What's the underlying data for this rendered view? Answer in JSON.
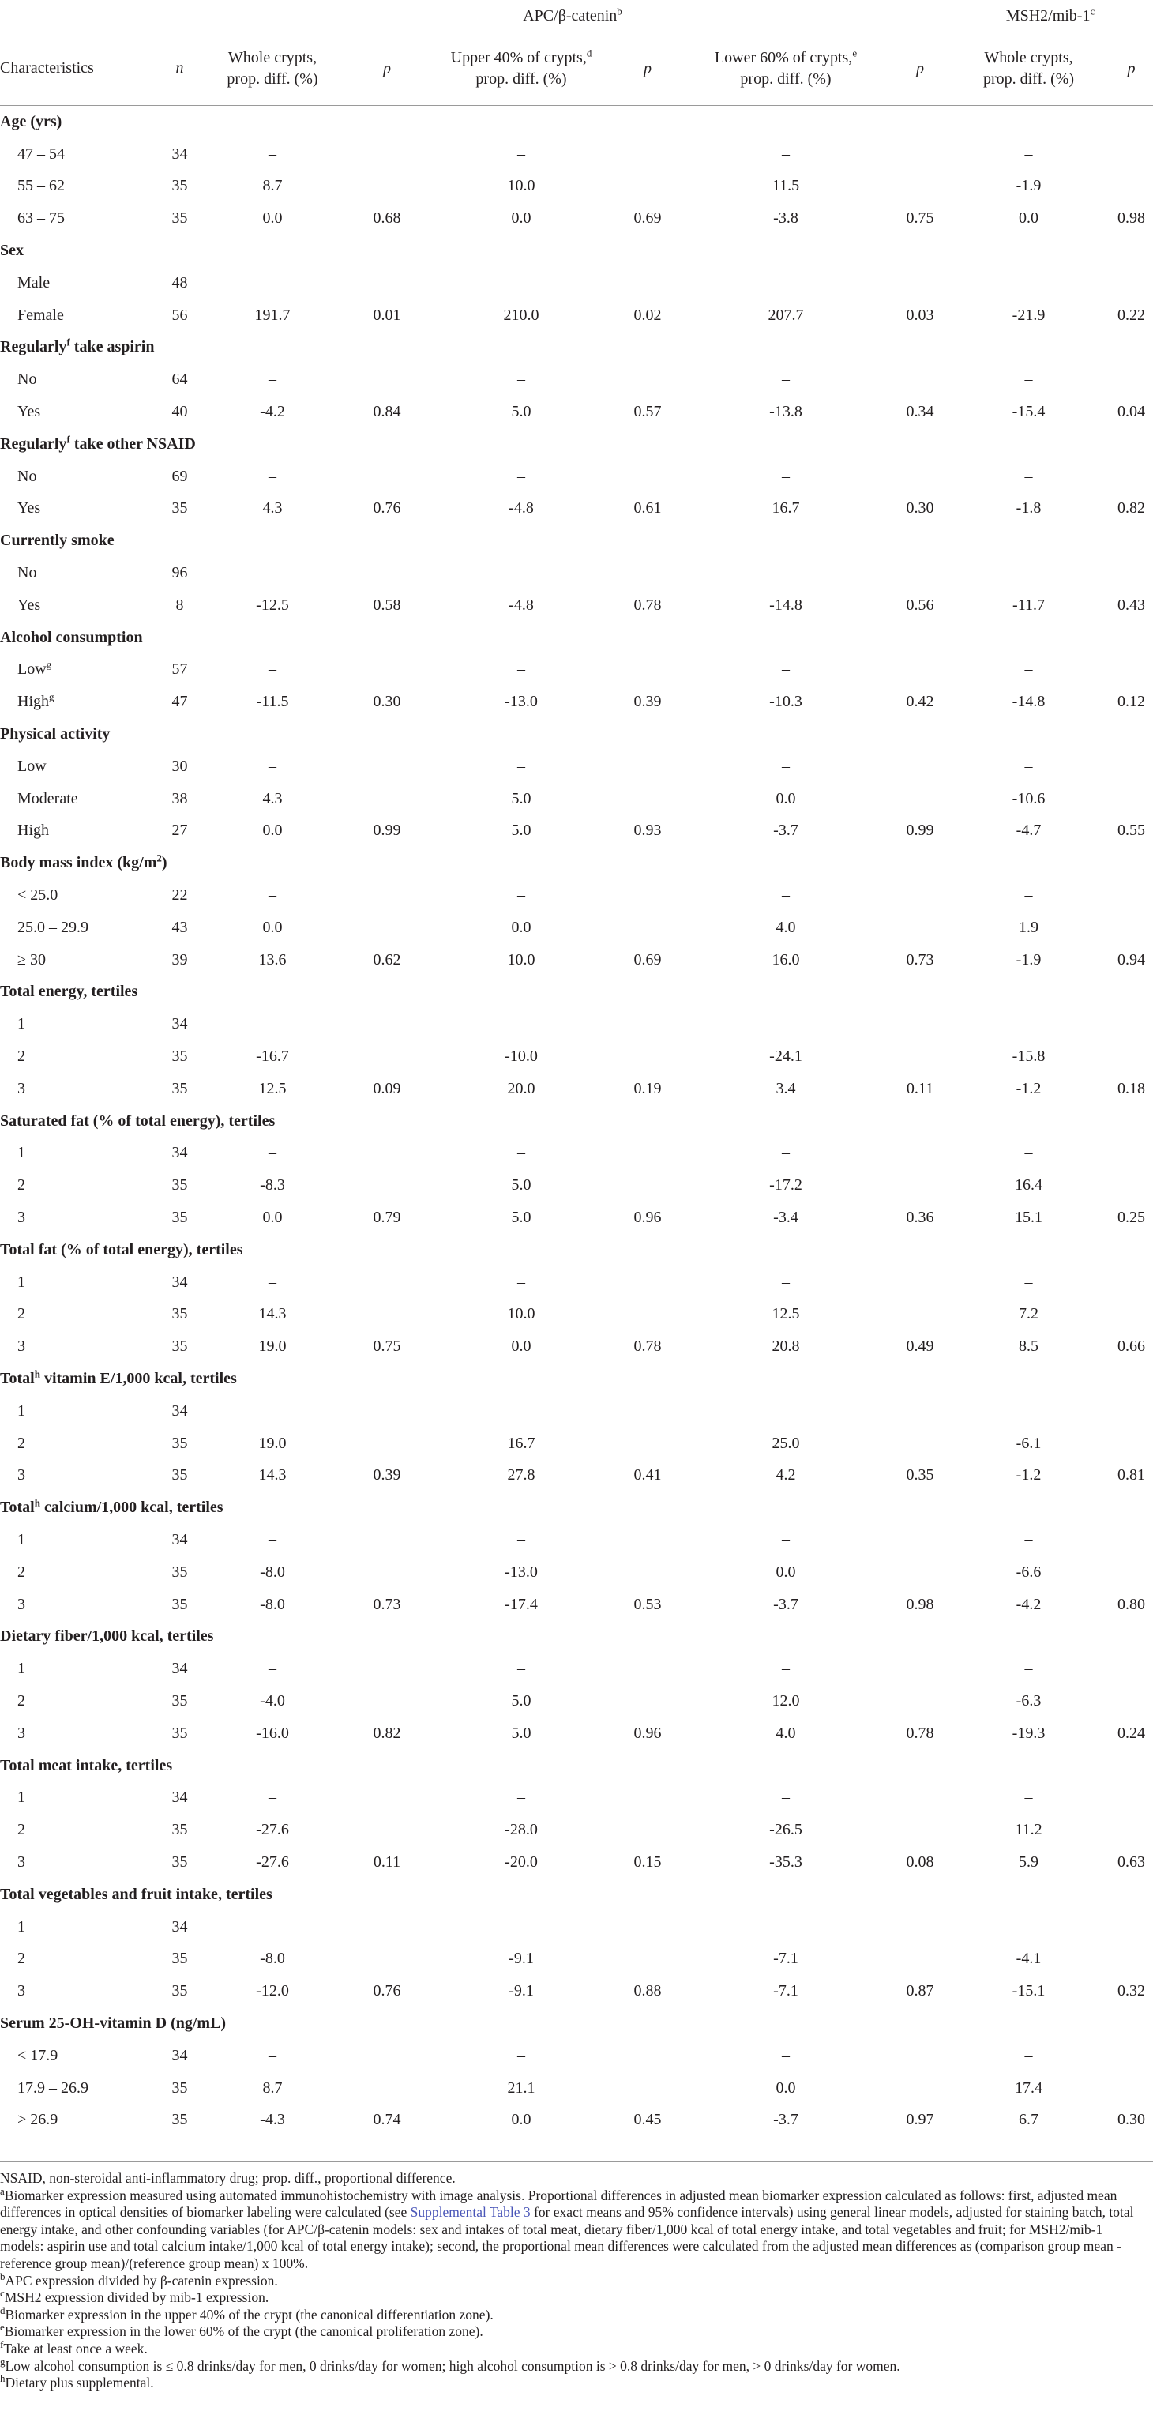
{
  "headers": {
    "group_apc": "APC/β-catenin",
    "group_apc_sup": "b",
    "group_msh": "MSH2/mib-1",
    "group_msh_sup": "c",
    "characteristics": "Characteristics",
    "n": "n",
    "whole_crypts_l1": "Whole crypts,",
    "whole_crypts_l2": "prop. diff. (%)",
    "p": "p",
    "upper_l1": "Upper 40% of crypts,",
    "upper_sup": "d",
    "upper_l2": "prop. diff. (%)",
    "lower_l1": "Lower 60% of crypts,",
    "lower_sup": "e",
    "lower_l2": "prop. diff. (%)",
    "msh_whole_l1": "Whole crypts,",
    "msh_whole_l2": "prop. diff. (%)"
  },
  "rows": [
    {
      "type": "cat",
      "label": "Age (yrs)"
    },
    {
      "type": "data",
      "label": "47 – 54",
      "n": "34",
      "w": "–",
      "wp": "",
      "u": "–",
      "up": "",
      "lo": "–",
      "lop": "",
      "m": "–",
      "mp": ""
    },
    {
      "type": "data",
      "label": "55 – 62",
      "n": "35",
      "w": "8.7",
      "wp": "",
      "u": "10.0",
      "up": "",
      "lo": "11.5",
      "lop": "",
      "m": "-1.9",
      "mp": ""
    },
    {
      "type": "data",
      "label": "63 – 75",
      "n": "35",
      "w": "0.0",
      "wp": "0.68",
      "u": "0.0",
      "up": "0.69",
      "lo": "-3.8",
      "lop": "0.75",
      "m": "0.0",
      "mp": "0.98"
    },
    {
      "type": "cat",
      "label": "Sex"
    },
    {
      "type": "data",
      "label": "Male",
      "n": "48",
      "w": "–",
      "wp": "",
      "u": "–",
      "up": "",
      "lo": "–",
      "lop": "",
      "m": "–",
      "mp": ""
    },
    {
      "type": "data",
      "label": "Female",
      "n": "56",
      "w": "191.7",
      "wp": "0.01",
      "u": "210.0",
      "up": "0.02",
      "lo": "207.7",
      "lop": "0.03",
      "m": "-21.9",
      "mp": "0.22"
    },
    {
      "type": "cat",
      "label": "Regularly",
      "sup": "f",
      "label_after": " take aspirin"
    },
    {
      "type": "data",
      "label": "No",
      "n": "64",
      "w": "–",
      "wp": "",
      "u": "–",
      "up": "",
      "lo": "–",
      "lop": "",
      "m": "–",
      "mp": ""
    },
    {
      "type": "data",
      "label": "Yes",
      "n": "40",
      "w": "-4.2",
      "wp": "0.84",
      "u": "5.0",
      "up": "0.57",
      "lo": "-13.8",
      "lop": "0.34",
      "m": "-15.4",
      "mp": "0.04"
    },
    {
      "type": "cat",
      "label": "Regularly",
      "sup": "f",
      "label_after": " take other NSAID"
    },
    {
      "type": "data",
      "label": "No",
      "n": "69",
      "w": "–",
      "wp": "",
      "u": "–",
      "up": "",
      "lo": "–",
      "lop": "",
      "m": "–",
      "mp": ""
    },
    {
      "type": "data",
      "label": "Yes",
      "n": "35",
      "w": "4.3",
      "wp": "0.76",
      "u": "-4.8",
      "up": "0.61",
      "lo": "16.7",
      "lop": "0.30",
      "m": "-1.8",
      "mp": "0.82"
    },
    {
      "type": "cat",
      "label": "Currently smoke"
    },
    {
      "type": "data",
      "label": "No",
      "n": "96",
      "w": "–",
      "wp": "",
      "u": "–",
      "up": "",
      "lo": "–",
      "lop": "",
      "m": "–",
      "mp": ""
    },
    {
      "type": "data",
      "label": "Yes",
      "n": "8",
      "w": "-12.5",
      "wp": "0.58",
      "u": "-4.8",
      "up": "0.78",
      "lo": "-14.8",
      "lop": "0.56",
      "m": "-11.7",
      "mp": "0.43"
    },
    {
      "type": "cat",
      "label": "Alcohol consumption"
    },
    {
      "type": "data",
      "label": "Low",
      "sup": "g",
      "n": "57",
      "w": "–",
      "wp": "",
      "u": "–",
      "up": "",
      "lo": "–",
      "lop": "",
      "m": "–",
      "mp": ""
    },
    {
      "type": "data",
      "label": "High",
      "sup": "g",
      "n": "47",
      "w": "-11.5",
      "wp": "0.30",
      "u": "-13.0",
      "up": "0.39",
      "lo": "-10.3",
      "lop": "0.42",
      "m": "-14.8",
      "mp": "0.12"
    },
    {
      "type": "cat",
      "label": "Physical activity"
    },
    {
      "type": "data",
      "label": "Low",
      "n": "30",
      "w": "–",
      "wp": "",
      "u": "–",
      "up": "",
      "lo": "–",
      "lop": "",
      "m": "–",
      "mp": ""
    },
    {
      "type": "data",
      "label": "Moderate",
      "n": "38",
      "w": "4.3",
      "wp": "",
      "u": "5.0",
      "up": "",
      "lo": "0.0",
      "lop": "",
      "m": "-10.6",
      "mp": ""
    },
    {
      "type": "data",
      "label": "High",
      "n": "27",
      "w": "0.0",
      "wp": "0.99",
      "u": "5.0",
      "up": "0.93",
      "lo": "-3.7",
      "lop": "0.99",
      "m": "-4.7",
      "mp": "0.55"
    },
    {
      "type": "cat",
      "label": "Body mass index (kg/m",
      "sup": "2",
      "label_after": ")"
    },
    {
      "type": "data",
      "label": "< 25.0",
      "n": "22",
      "w": "–",
      "wp": "",
      "u": "–",
      "up": "",
      "lo": "–",
      "lop": "",
      "m": "–",
      "mp": ""
    },
    {
      "type": "data",
      "label": "25.0 – 29.9",
      "n": "43",
      "w": "0.0",
      "wp": "",
      "u": "0.0",
      "up": "",
      "lo": "4.0",
      "lop": "",
      "m": "1.9",
      "mp": ""
    },
    {
      "type": "data",
      "label": "≥ 30",
      "n": "39",
      "w": "13.6",
      "wp": "0.62",
      "u": "10.0",
      "up": "0.69",
      "lo": "16.0",
      "lop": "0.73",
      "m": "-1.9",
      "mp": "0.94"
    },
    {
      "type": "cat",
      "label": "Total energy, tertiles"
    },
    {
      "type": "data",
      "label": "1",
      "n": "34",
      "w": "–",
      "wp": "",
      "u": "–",
      "up": "",
      "lo": "–",
      "lop": "",
      "m": "–",
      "mp": ""
    },
    {
      "type": "data",
      "label": "2",
      "n": "35",
      "w": "-16.7",
      "wp": "",
      "u": "-10.0",
      "up": "",
      "lo": "-24.1",
      "lop": "",
      "m": "-15.8",
      "mp": ""
    },
    {
      "type": "data",
      "label": "3",
      "n": "35",
      "w": "12.5",
      "wp": "0.09",
      "u": "20.0",
      "up": "0.19",
      "lo": "3.4",
      "lop": "0.11",
      "m": "-1.2",
      "mp": "0.18"
    },
    {
      "type": "cat",
      "label": "Saturated fat (% of total energy), tertiles"
    },
    {
      "type": "data",
      "label": "1",
      "n": "34",
      "w": "–",
      "wp": "",
      "u": "–",
      "up": "",
      "lo": "–",
      "lop": "",
      "m": "–",
      "mp": ""
    },
    {
      "type": "data",
      "label": "2",
      "n": "35",
      "w": "-8.3",
      "wp": "",
      "u": "5.0",
      "up": "",
      "lo": "-17.2",
      "lop": "",
      "m": "16.4",
      "mp": ""
    },
    {
      "type": "data",
      "label": "3",
      "n": "35",
      "w": "0.0",
      "wp": "0.79",
      "u": "5.0",
      "up": "0.96",
      "lo": "-3.4",
      "lop": "0.36",
      "m": "15.1",
      "mp": "0.25"
    },
    {
      "type": "cat",
      "label": "Total fat (% of total energy), tertiles"
    },
    {
      "type": "data",
      "label": "1",
      "n": "34",
      "w": "–",
      "wp": "",
      "u": "–",
      "up": "",
      "lo": "–",
      "lop": "",
      "m": "–",
      "mp": ""
    },
    {
      "type": "data",
      "label": "2",
      "n": "35",
      "w": "14.3",
      "wp": "",
      "u": "10.0",
      "up": "",
      "lo": "12.5",
      "lop": "",
      "m": "7.2",
      "mp": ""
    },
    {
      "type": "data",
      "label": "3",
      "n": "35",
      "w": "19.0",
      "wp": "0.75",
      "u": "0.0",
      "up": "0.78",
      "lo": "20.8",
      "lop": "0.49",
      "m": "8.5",
      "mp": "0.66"
    },
    {
      "type": "cat",
      "label": "Total",
      "sup": "h",
      "label_after": " vitamin E/1,000 kcal, tertiles"
    },
    {
      "type": "data",
      "label": "1",
      "n": "34",
      "w": "–",
      "wp": "",
      "u": "–",
      "up": "",
      "lo": "–",
      "lop": "",
      "m": "–",
      "mp": ""
    },
    {
      "type": "data",
      "label": "2",
      "n": "35",
      "w": "19.0",
      "wp": "",
      "u": "16.7",
      "up": "",
      "lo": "25.0",
      "lop": "",
      "m": "-6.1",
      "mp": ""
    },
    {
      "type": "data",
      "label": "3",
      "n": "35",
      "w": "14.3",
      "wp": "0.39",
      "u": "27.8",
      "up": "0.41",
      "lo": "4.2",
      "lop": "0.35",
      "m": "-1.2",
      "mp": "0.81"
    },
    {
      "type": "cat",
      "label": "Total",
      "sup": "h",
      "label_after": " calcium/1,000 kcal, tertiles"
    },
    {
      "type": "data",
      "label": "1",
      "n": "34",
      "w": "–",
      "wp": "",
      "u": "–",
      "up": "",
      "lo": "–",
      "lop": "",
      "m": "–",
      "mp": ""
    },
    {
      "type": "data",
      "label": "2",
      "n": "35",
      "w": "-8.0",
      "wp": "",
      "u": "-13.0",
      "up": "",
      "lo": "0.0",
      "lop": "",
      "m": "-6.6",
      "mp": ""
    },
    {
      "type": "data",
      "label": "3",
      "n": "35",
      "w": "-8.0",
      "wp": "0.73",
      "u": "-17.4",
      "up": "0.53",
      "lo": "-3.7",
      "lop": "0.98",
      "m": "-4.2",
      "mp": "0.80"
    },
    {
      "type": "cat",
      "label": "Dietary fiber/1,000 kcal, tertiles"
    },
    {
      "type": "data",
      "label": "1",
      "n": "34",
      "w": "–",
      "wp": "",
      "u": "–",
      "up": "",
      "lo": "–",
      "lop": "",
      "m": "–",
      "mp": ""
    },
    {
      "type": "data",
      "label": "2",
      "n": "35",
      "w": "-4.0",
      "wp": "",
      "u": "5.0",
      "up": "",
      "lo": "12.0",
      "lop": "",
      "m": "-6.3",
      "mp": ""
    },
    {
      "type": "data",
      "label": "3",
      "n": "35",
      "w": "-16.0",
      "wp": "0.82",
      "u": "5.0",
      "up": "0.96",
      "lo": "4.0",
      "lop": "0.78",
      "m": "-19.3",
      "mp": "0.24"
    },
    {
      "type": "cat",
      "label": "Total meat intake, tertiles"
    },
    {
      "type": "data",
      "label": "1",
      "n": "34",
      "w": "–",
      "wp": "",
      "u": "–",
      "up": "",
      "lo": "–",
      "lop": "",
      "m": "–",
      "mp": ""
    },
    {
      "type": "data",
      "label": "2",
      "n": "35",
      "w": "-27.6",
      "wp": "",
      "u": "-28.0",
      "up": "",
      "lo": "-26.5",
      "lop": "",
      "m": "11.2",
      "mp": ""
    },
    {
      "type": "data",
      "label": "3",
      "n": "35",
      "w": "-27.6",
      "wp": "0.11",
      "u": "-20.0",
      "up": "0.15",
      "lo": "-35.3",
      "lop": "0.08",
      "m": "5.9",
      "mp": "0.63"
    },
    {
      "type": "cat",
      "label": "Total vegetables and fruit intake, tertiles"
    },
    {
      "type": "data",
      "label": "1",
      "n": "34",
      "w": "–",
      "wp": "",
      "u": "–",
      "up": "",
      "lo": "–",
      "lop": "",
      "m": "–",
      "mp": ""
    },
    {
      "type": "data",
      "label": "2",
      "n": "35",
      "w": "-8.0",
      "wp": "",
      "u": "-9.1",
      "up": "",
      "lo": "-7.1",
      "lop": "",
      "m": "-4.1",
      "mp": ""
    },
    {
      "type": "data",
      "label": "3",
      "n": "35",
      "w": "-12.0",
      "wp": "0.76",
      "u": "-9.1",
      "up": "0.88",
      "lo": "-7.1",
      "lop": "0.87",
      "m": "-15.1",
      "mp": "0.32"
    },
    {
      "type": "cat",
      "label": "Serum 25-OH-vitamin D (ng/mL)"
    },
    {
      "type": "data",
      "label": "< 17.9",
      "n": "34",
      "w": "–",
      "wp": "",
      "u": "–",
      "up": "",
      "lo": "–",
      "lop": "",
      "m": "–",
      "mp": ""
    },
    {
      "type": "data",
      "label": "17.9 – 26.9",
      "n": "35",
      "w": "8.7",
      "wp": "",
      "u": "21.1",
      "up": "",
      "lo": "0.0",
      "lop": "",
      "m": "17.4",
      "mp": ""
    },
    {
      "type": "data",
      "label": "> 26.9",
      "n": "35",
      "w": "-4.3",
      "wp": "0.74",
      "u": "0.0",
      "up": "0.45",
      "lo": "-3.7",
      "lop": "0.97",
      "m": "6.7",
      "mp": "0.30"
    }
  ],
  "footnotes": {
    "abbrev": "NSAID, non-steroidal anti-inflammatory drug; prop. diff., proportional difference.",
    "a_sup": "a",
    "a_text_1": "Biomarker expression measured using automated immunohistochemistry with image analysis. Proportional differences in adjusted mean biomarker expression calculated as follows: first, adjusted mean differences in optical densities of biomarker labeling were calculated (see ",
    "a_link": "Supplemental Table 3",
    "a_text_2": " for exact means and 95% confidence intervals) using general linear models, adjusted for staining batch, total energy intake, and other confounding variables (for APC/β-catenin models: sex and intakes of total meat, dietary fiber/1,000 kcal of total energy intake, and total vegetables and fruit; for MSH2/mib-1 models: aspirin use and total calcium intake/1,000 kcal of total energy intake); second, the proportional mean differences were calculated from the adjusted mean differences as (comparison group mean - reference group mean)/(reference group mean) x 100%.",
    "b_sup": "b",
    "b_text": "APC expression divided by β-catenin expression.",
    "c_sup": "c",
    "c_text": "MSH2 expression divided by mib-1 expression.",
    "d_sup": "d",
    "d_text": "Biomarker expression in the upper 40% of the crypt (the canonical differentiation zone).",
    "e_sup": "e",
    "e_text": "Biomarker expression in the lower 60% of the crypt (the canonical proliferation zone).",
    "f_sup": "f",
    "f_text": "Take at least once a week.",
    "g_sup": "g",
    "g_text": "Low alcohol consumption is ≤ 0.8 drinks/day for men, 0 drinks/day for women; high alcohol consumption is > 0.8 drinks/day for men, > 0 drinks/day for women.",
    "h_sup": "h",
    "h_text": "Dietary plus supplemental."
  }
}
